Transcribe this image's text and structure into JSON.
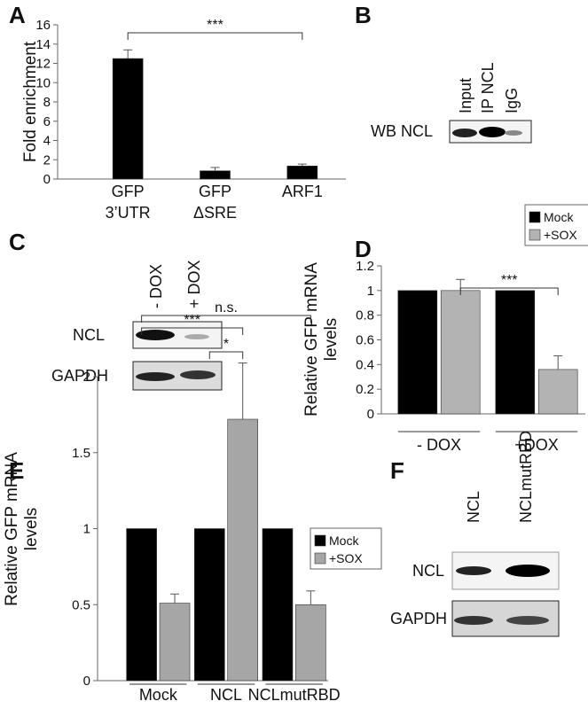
{
  "panels": [
    "A",
    "B",
    "C",
    "D",
    "E",
    "F"
  ],
  "chart_data": [
    {
      "type": "bar",
      "ylabel": [
        "Fold enrichment"
      ],
      "categories": [
        [
          "GFP",
          "3’UTR"
        ],
        [
          "GFP",
          "ΔSRE"
        ],
        [
          "ARF1"
        ]
      ],
      "series": [
        {
          "color": "#000000",
          "values": [
            12.5,
            0.85,
            1.35
          ],
          "errors": [
            0.9,
            0.35,
            0.2
          ]
        }
      ],
      "ylim": [
        0,
        16
      ],
      "yticks": [
        0,
        2,
        4,
        6,
        8,
        10,
        12,
        14,
        16
      ],
      "annotations": [
        "***"
      ]
    },
    {
      "type": "bar",
      "ylabel": [
        "Relative GFP mRNA",
        "levels"
      ],
      "categories": [
        [
          "- DOX"
        ],
        [
          "+DOX"
        ]
      ],
      "series": [
        {
          "name": "Mock",
          "color": "#000000",
          "values": [
            1,
            1
          ]
        },
        {
          "name": "+SOX",
          "color": "#b3b3b3",
          "values": [
            1,
            0.36
          ],
          "errors": [
            0.09,
            0.11
          ]
        }
      ],
      "ylim": [
        0,
        1.2
      ],
      "yticks": [
        0,
        0.2,
        0.4,
        0.6,
        0.8,
        1,
        1.2
      ],
      "annotations": [
        "***"
      ]
    },
    {
      "type": "bar",
      "ylabel": [
        "Relative GFP mRNA",
        "levels"
      ],
      "categories": [
        [
          "Mock"
        ],
        [
          "NCL"
        ],
        [
          "NCLmutRBD"
        ]
      ],
      "series": [
        {
          "name": "Mock",
          "color": "#000000",
          "values": [
            1,
            1,
            1
          ]
        },
        {
          "name": "+SOX",
          "color": "#a6a6a6",
          "values": [
            0.51,
            1.72,
            0.5
          ],
          "errors": [
            0.06,
            0.37,
            0.09
          ]
        }
      ],
      "ylim": [
        0,
        2
      ],
      "yticks": [
        0,
        0.5,
        1,
        1.5,
        2
      ],
      "annotations": [
        "***",
        "*",
        "n.s."
      ]
    }
  ],
  "blots": {
    "B": {
      "lanes": [
        "Input",
        "IP NCL",
        "IgG"
      ],
      "rows": [
        "WB NCL"
      ]
    },
    "C": {
      "lanes": [
        "- DOX",
        "+ DOX"
      ],
      "rows": [
        "NCL",
        "GAPDH"
      ]
    },
    "F": {
      "lanes": [
        "NCL",
        "NCLmutRBD"
      ],
      "rows": [
        "NCL",
        "GAPDH"
      ]
    }
  }
}
